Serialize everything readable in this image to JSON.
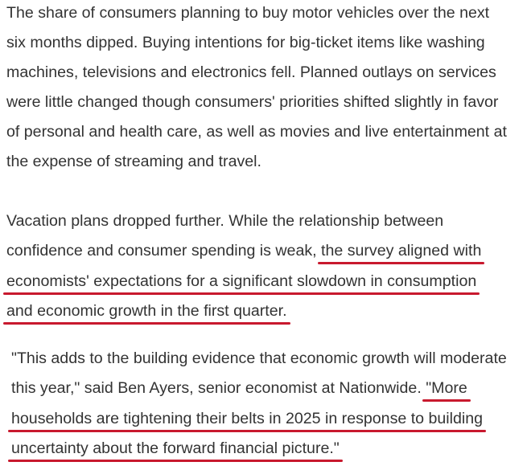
{
  "underline_color": "#c8192e",
  "paragraphs": [
    {
      "lines": [
        {
          "text": "The share of consumers planning to buy motor vehicles over the next",
          "ul": ""
        },
        {
          "text": "six months dipped. Buying intentions for big-ticket items like washing",
          "ul": ""
        },
        {
          "text": "machines, televisions and electronics fell. Planned outlays on services",
          "ul": ""
        },
        {
          "text": "were little changed though consumers' priorities shifted slightly in favor",
          "ul": ""
        },
        {
          "text": "of personal and health care, as well as movies and live entertainment at",
          "ul": ""
        },
        {
          "text": "the expense of streaming and travel.",
          "ul": ""
        }
      ]
    },
    {
      "lines": [
        {
          "text": "Vacation plans dropped further. While the relationship between",
          "ul": ""
        },
        {
          "text": "confidence and consumer spending is weak, ",
          "ul": "the survey aligned with"
        },
        {
          "text": "",
          "ul": "economists' expectations for a significant slowdown in consumption"
        },
        {
          "text": "",
          "ul": "and economic growth in the first quarter."
        }
      ]
    },
    {
      "lines": [
        {
          "text": "\"This adds to the building evidence that economic growth will moderate",
          "ul": ""
        },
        {
          "text": "this year,\" said Ben Ayers, senior economist at Nationwide. ",
          "ul": "\"More"
        },
        {
          "text": "",
          "ul": "households are tightening their belts in 2025 in response to building"
        },
        {
          "text": "",
          "ul": "uncertainty about the forward financial picture.\""
        }
      ]
    }
  ]
}
